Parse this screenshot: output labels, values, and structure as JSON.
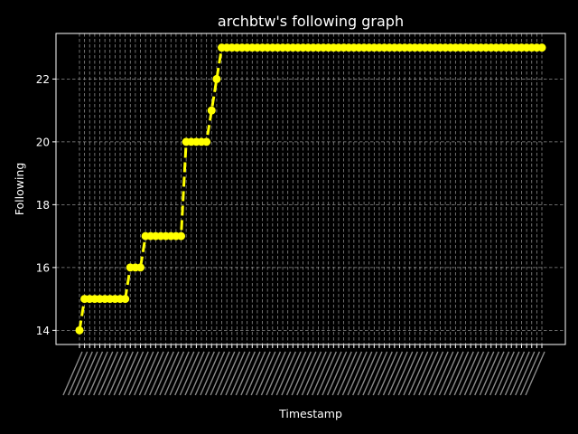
{
  "chart_data": {
    "type": "line",
    "title": "archbtw's following graph",
    "xlabel": "Timestamp",
    "ylabel": "Following",
    "ylim": [
      13.55,
      23.45
    ],
    "yticks": [
      14,
      16,
      18,
      20,
      22
    ],
    "grid": true,
    "grid_style": "dashed",
    "background_color": "#000000",
    "foreground_color": "#ffffff",
    "series_color": "#ffff00",
    "line_style": "dashed",
    "marker": "circle",
    "x_tick_labels_note": "92 rotated timestamp labels, overlapping and illegible",
    "x_count": 92,
    "series": [
      {
        "values": [
          14,
          15,
          15,
          15,
          15,
          15,
          15,
          15,
          15,
          15,
          16,
          16,
          16,
          17,
          17,
          17,
          17,
          17,
          17,
          17,
          17,
          20,
          20,
          20,
          20,
          20,
          21,
          22,
          23,
          23,
          23,
          23,
          23,
          23,
          23,
          23,
          23,
          23,
          23,
          23,
          23,
          23,
          23,
          23,
          23,
          23,
          23,
          23,
          23,
          23,
          23,
          23,
          23,
          23,
          23,
          23,
          23,
          23,
          23,
          23,
          23,
          23,
          23,
          23,
          23,
          23,
          23,
          23,
          23,
          23,
          23,
          23,
          23,
          23,
          23,
          23,
          23,
          23,
          23,
          23,
          23,
          23,
          23,
          23,
          23,
          23,
          23,
          23,
          23,
          23,
          23,
          23
        ]
      }
    ]
  }
}
